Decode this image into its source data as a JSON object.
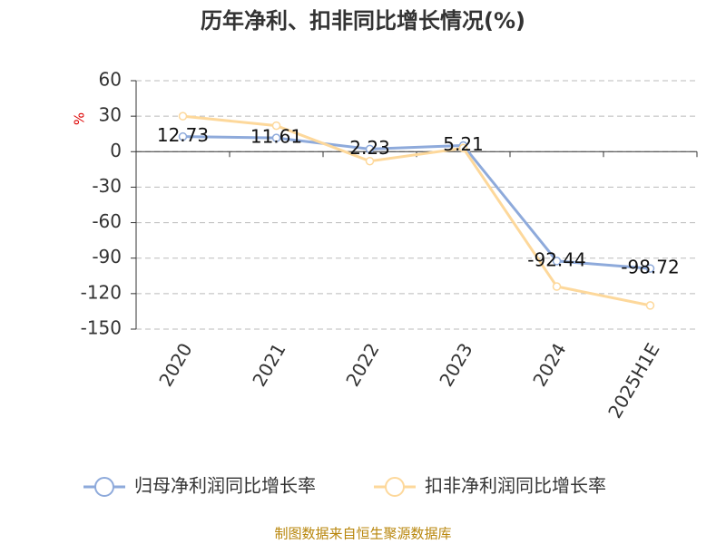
{
  "chart_data": {
    "type": "line",
    "title": "历年净利、扣非同比增长情况(%)",
    "y_label": "%",
    "source": "制图数据来自恒生聚源数据库",
    "categories": [
      "2020",
      "2021",
      "2022",
      "2023",
      "2024",
      "2025H1E"
    ],
    "series": [
      {
        "name": "归母净利润同比增长率",
        "color": "#8eaadb",
        "values": [
          12.73,
          11.61,
          2.23,
          5.21,
          -92.44,
          -98.72
        ],
        "labels": true
      },
      {
        "name": "扣非净利润同比增长率",
        "color": "#fdd89b",
        "values": [
          30,
          22,
          -8,
          3,
          -114,
          -130
        ],
        "labels": false
      }
    ],
    "ylim": [
      -150,
      60
    ],
    "yticks": [
      -150,
      -120,
      -90,
      -60,
      -30,
      0,
      30,
      60
    ],
    "grid": true
  }
}
